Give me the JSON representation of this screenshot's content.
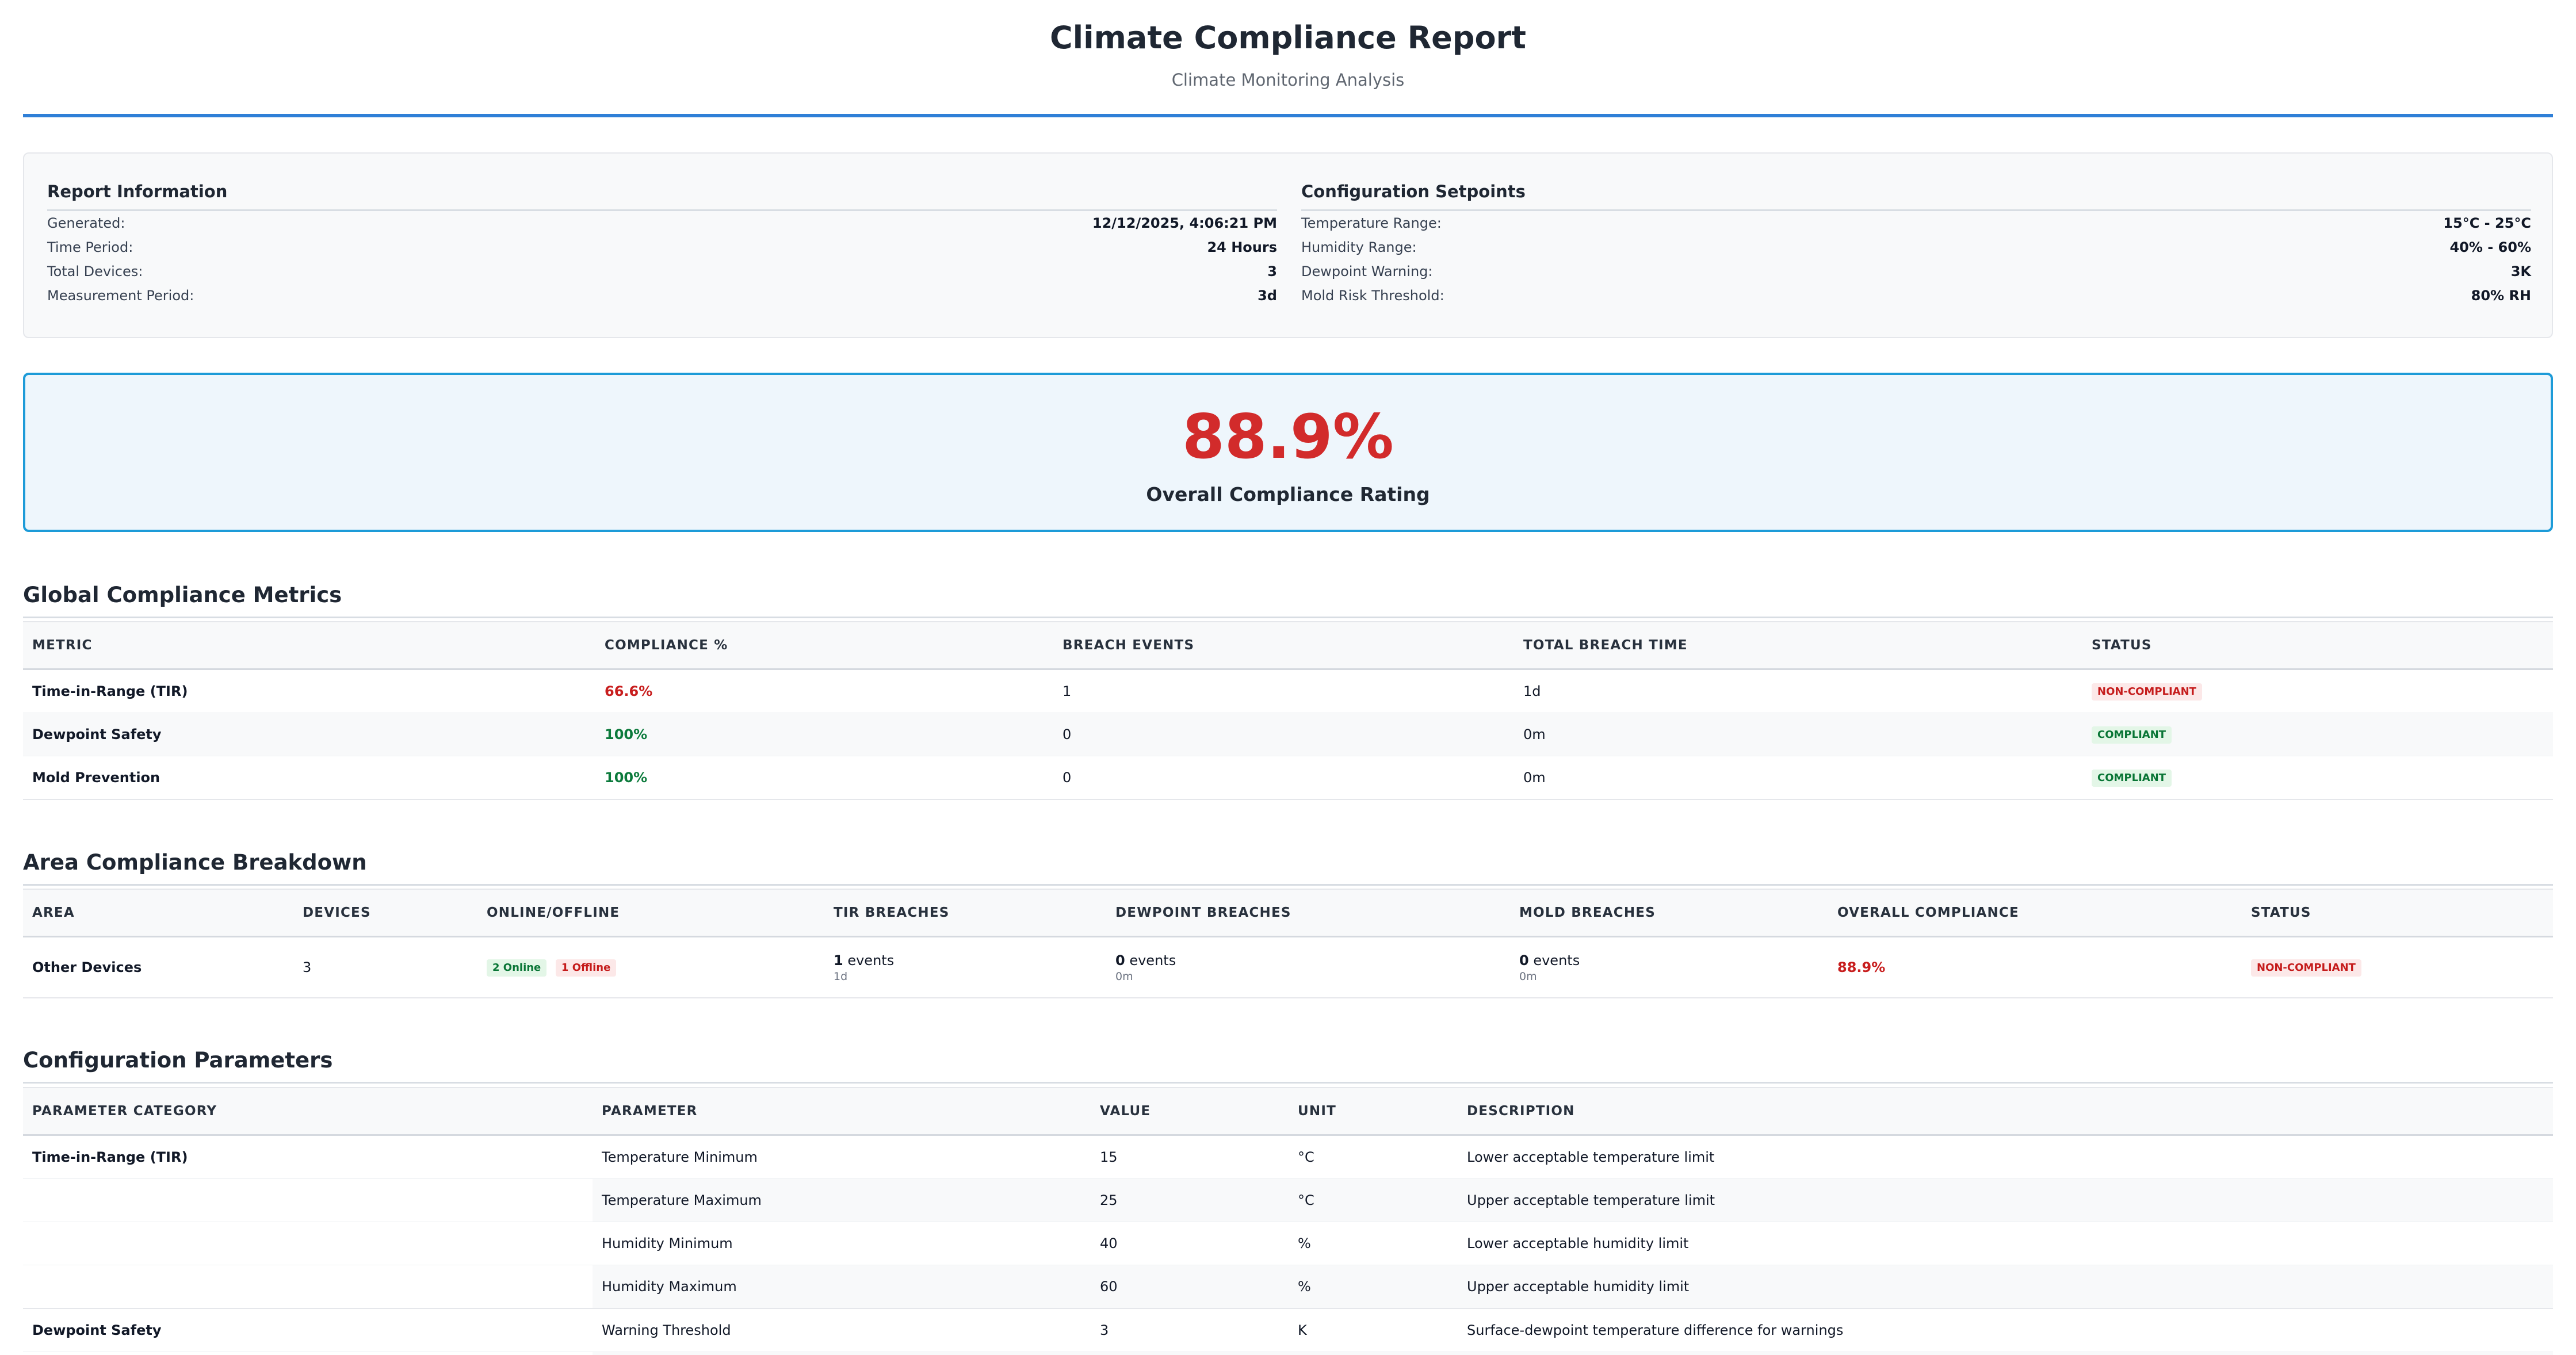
{
  "header": {
    "title": "Climate Compliance Report",
    "subtitle": "Climate Monitoring Analysis"
  },
  "report_information": {
    "heading": "Report Information",
    "rows": [
      {
        "label": "Generated:",
        "value": "12/12/2025, 4:06:21 PM"
      },
      {
        "label": "Time Period:",
        "value": "24 Hours"
      },
      {
        "label": "Total Devices:",
        "value": "3"
      },
      {
        "label": "Measurement Period:",
        "value": "3d"
      }
    ]
  },
  "configuration_setpoints": {
    "heading": "Configuration Setpoints",
    "rows": [
      {
        "label": "Temperature Range:",
        "value": "15°C - 25°C"
      },
      {
        "label": "Humidity Range:",
        "value": "40% - 60%"
      },
      {
        "label": "Dewpoint Warning:",
        "value": "3K"
      },
      {
        "label": "Mold Risk Threshold:",
        "value": "80% RH"
      }
    ]
  },
  "overall_compliance": {
    "value": "88.9%",
    "label": "Overall Compliance Rating"
  },
  "global_metrics": {
    "heading": "Global Compliance Metrics",
    "columns": [
      "METRIC",
      "COMPLIANCE %",
      "BREACH EVENTS",
      "TOTAL BREACH TIME",
      "STATUS"
    ],
    "rows": [
      {
        "metric": "Time-in-Range (TIR)",
        "compliance": "66.6%",
        "breach_events": "1",
        "breach_time": "1d",
        "status": "NON-COMPLIANT"
      },
      {
        "metric": "Dewpoint Safety",
        "compliance": "100%",
        "breach_events": "0",
        "breach_time": "0m",
        "status": "COMPLIANT"
      },
      {
        "metric": "Mold Prevention",
        "compliance": "100%",
        "breach_events": "0",
        "breach_time": "0m",
        "status": "COMPLIANT"
      }
    ]
  },
  "area_breakdown": {
    "heading": "Area Compliance Breakdown",
    "columns": [
      "AREA",
      "DEVICES",
      "ONLINE/OFFLINE",
      "TIR BREACHES",
      "DEWPOINT BREACHES",
      "MOLD BREACHES",
      "OVERALL COMPLIANCE",
      "STATUS"
    ],
    "rows": [
      {
        "area": "Other Devices",
        "devices": "3",
        "online": "2 Online",
        "offline": "1 Offline",
        "tir_count": "1",
        "tir_unit": " events",
        "tir_time": "1d",
        "dewpoint_count": "0",
        "dewpoint_unit": " events",
        "dewpoint_time": "0m",
        "mold_count": "0",
        "mold_unit": " events",
        "mold_time": "0m",
        "overall": "88.9%",
        "status": "NON-COMPLIANT"
      }
    ]
  },
  "configuration_parameters": {
    "heading": "Configuration Parameters",
    "columns": [
      "PARAMETER CATEGORY",
      "PARAMETER",
      "VALUE",
      "UNIT",
      "DESCRIPTION"
    ],
    "rows": [
      {
        "category": "Time-in-Range (TIR)",
        "parameter": "Temperature Minimum",
        "value": "15",
        "unit": "°C",
        "description": "Lower acceptable temperature limit"
      },
      {
        "category": "",
        "parameter": "Temperature Maximum",
        "value": "25",
        "unit": "°C",
        "description": "Upper acceptable temperature limit"
      },
      {
        "category": "",
        "parameter": "Humidity Minimum",
        "value": "40",
        "unit": "%",
        "description": "Lower acceptable humidity limit"
      },
      {
        "category": "",
        "parameter": "Humidity Maximum",
        "value": "60",
        "unit": "%",
        "description": "Upper acceptable humidity limit"
      },
      {
        "category": "Dewpoint Safety",
        "parameter": "Warning Threshold",
        "value": "3",
        "unit": "K",
        "description": "Surface-dewpoint temperature difference for warnings"
      }
    ]
  },
  "colors": {
    "accent_blue": "#2f7fd7",
    "rating_border": "#1d9bd8",
    "non_compliant_red": "#d22b2b",
    "compliant_green": "#0b7a3b"
  }
}
